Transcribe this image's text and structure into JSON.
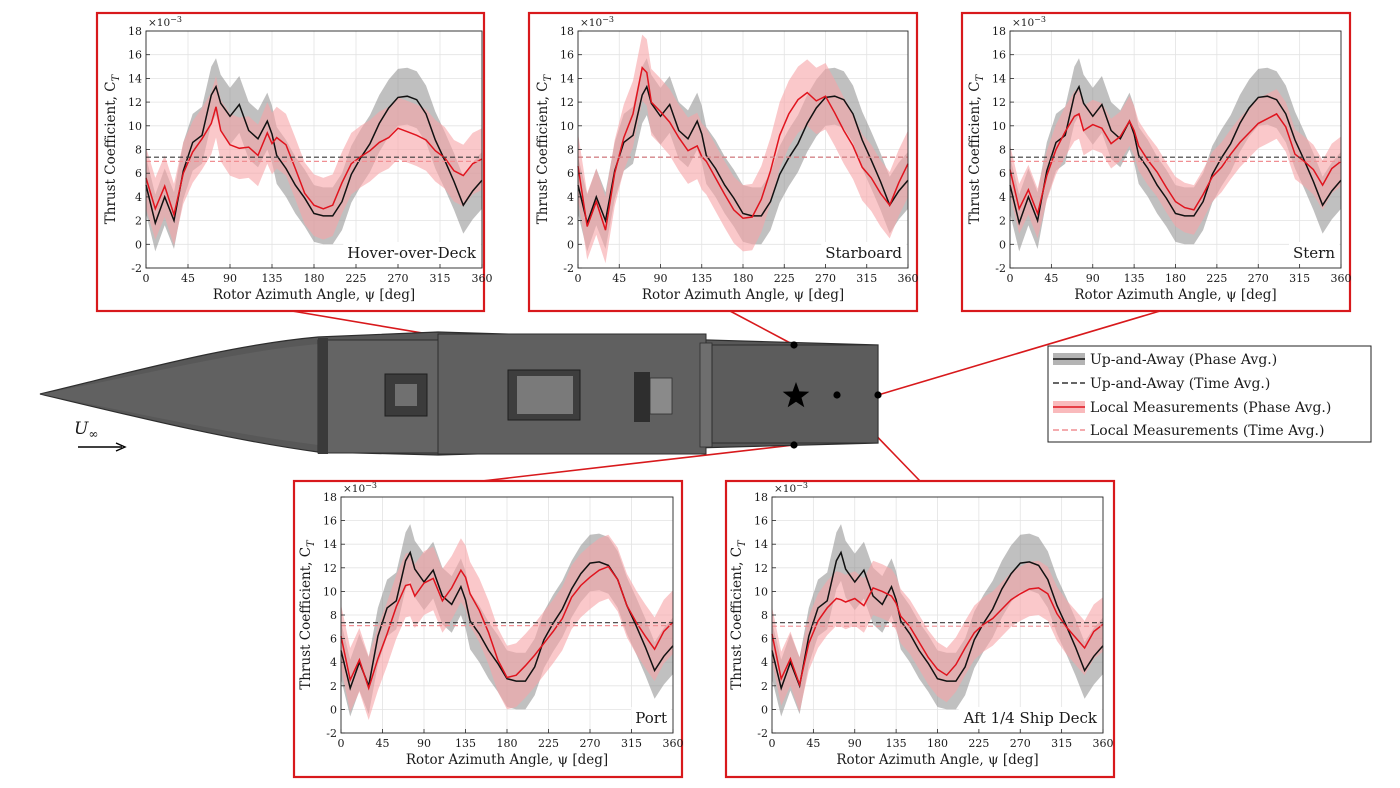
{
  "figure": {
    "xlabel": "Rotor Azimuth Angle, ψ [deg]",
    "ylabel": "Thrust Coefficient, C",
    "ylabel_sub": "T",
    "exponent": "×10",
    "exponent_power": "−3",
    "freestream_label": "U",
    "freestream_sub": "∞",
    "colors": {
      "uaa_line": "#111111",
      "uaa_band": "#8c8c8c",
      "local_line": "#e0141e",
      "local_band": "#f7a3a6",
      "highlight_box": "#d8191c",
      "ship": "#5a5a5a"
    }
  },
  "legend": {
    "items": [
      {
        "label": "Up-and-Away (Phase Avg.)",
        "kind": "uaa-band-line"
      },
      {
        "label": "Up-and-Away (Time Avg.)",
        "kind": "uaa-dash"
      },
      {
        "label": "Local Measurements (Phase Avg.)",
        "kind": "local-band-line"
      },
      {
        "label": "Local Measurements (Time Avg.)",
        "kind": "local-dash"
      }
    ]
  },
  "chart_data": [
    {
      "type": "line",
      "location": "Hover-over-Deck",
      "xlabel": "Rotor Azimuth Angle, ψ [deg]",
      "ylabel": "Thrust Coefficient, C_T",
      "xlim": [
        0,
        360
      ],
      "ylim": [
        -2,
        18
      ],
      "y_scale": "×10^-3",
      "grid": true,
      "xticks": [
        0,
        45,
        90,
        135,
        180,
        225,
        270,
        315,
        360
      ],
      "yticks": [
        -2,
        0,
        2,
        4,
        6,
        8,
        10,
        12,
        14,
        16,
        18
      ],
      "series": [
        {
          "name": "Up-and-Away (Phase Avg.)",
          "x": [
            0,
            10,
            20,
            30,
            40,
            50,
            60,
            70,
            75,
            80,
            90,
            100,
            110,
            120,
            130,
            135,
            140,
            150,
            160,
            170,
            180,
            190,
            200,
            210,
            220,
            230,
            240,
            250,
            260,
            270,
            280,
            290,
            300,
            310,
            320,
            330,
            340,
            350,
            360
          ],
          "y": [
            5.0,
            1.8,
            4.0,
            2.0,
            6.2,
            8.6,
            9.2,
            12.6,
            13.3,
            11.9,
            10.8,
            11.8,
            9.6,
            8.9,
            10.4,
            9.3,
            7.5,
            6.4,
            5.0,
            3.9,
            2.6,
            2.4,
            2.4,
            3.6,
            5.9,
            7.3,
            8.5,
            10.2,
            11.5,
            12.4,
            12.5,
            12.2,
            11.0,
            8.8,
            7.1,
            5.3,
            3.3,
            4.5,
            5.4
          ],
          "band_half_width": 2.4
        },
        {
          "name": "Local Measurements (Phase Avg.)",
          "x": [
            0,
            10,
            20,
            30,
            40,
            50,
            60,
            70,
            75,
            80,
            90,
            100,
            110,
            120,
            130,
            135,
            140,
            150,
            160,
            170,
            180,
            190,
            200,
            210,
            220,
            230,
            240,
            250,
            260,
            270,
            280,
            290,
            300,
            310,
            320,
            330,
            340,
            350,
            360
          ],
          "y": [
            5.6,
            3.0,
            4.9,
            2.5,
            6.0,
            7.8,
            8.9,
            10.2,
            11.6,
            9.6,
            8.4,
            8.1,
            8.2,
            7.5,
            9.4,
            8.5,
            9.0,
            8.4,
            6.4,
            4.3,
            3.3,
            3.0,
            3.3,
            5.2,
            6.8,
            7.4,
            7.9,
            8.6,
            9.0,
            9.8,
            9.5,
            9.2,
            8.8,
            7.9,
            7.3,
            6.2,
            5.8,
            6.8,
            7.2
          ],
          "band_half_width": 2.6
        },
        {
          "name": "Up-and-Away (Time Avg.)",
          "value": 7.35
        },
        {
          "name": "Local Measurements (Time Avg.)",
          "value": 7.0
        }
      ]
    },
    {
      "type": "line",
      "location": "Starboard",
      "xlabel": "Rotor Azimuth Angle, ψ [deg]",
      "ylabel": "Thrust Coefficient, C_T",
      "xlim": [
        0,
        360
      ],
      "ylim": [
        -2,
        18
      ],
      "y_scale": "×10^-3",
      "grid": true,
      "xticks": [
        0,
        45,
        90,
        135,
        180,
        225,
        270,
        315,
        360
      ],
      "yticks": [
        -2,
        0,
        2,
        4,
        6,
        8,
        10,
        12,
        14,
        16,
        18
      ],
      "series": [
        {
          "name": "Up-and-Away (Phase Avg.)",
          "x": [
            0,
            10,
            20,
            30,
            40,
            50,
            60,
            70,
            75,
            80,
            90,
            100,
            110,
            120,
            130,
            135,
            140,
            150,
            160,
            170,
            180,
            190,
            200,
            210,
            220,
            230,
            240,
            250,
            260,
            270,
            280,
            290,
            300,
            310,
            320,
            330,
            340,
            350,
            360
          ],
          "y": [
            5.0,
            1.8,
            4.0,
            2.0,
            6.2,
            8.6,
            9.2,
            12.6,
            13.3,
            11.9,
            10.8,
            11.8,
            9.6,
            8.9,
            10.4,
            9.3,
            7.5,
            6.4,
            5.0,
            3.9,
            2.6,
            2.4,
            2.4,
            3.6,
            5.9,
            7.3,
            8.5,
            10.2,
            11.5,
            12.4,
            12.5,
            12.2,
            11.0,
            8.8,
            7.1,
            5.3,
            3.3,
            4.5,
            5.4
          ],
          "band_half_width": 2.4
        },
        {
          "name": "Local Measurements (Phase Avg.)",
          "x": [
            0,
            10,
            20,
            30,
            40,
            50,
            60,
            70,
            75,
            80,
            90,
            100,
            110,
            120,
            130,
            135,
            140,
            150,
            160,
            170,
            180,
            190,
            200,
            210,
            220,
            230,
            240,
            250,
            260,
            270,
            280,
            290,
            300,
            310,
            320,
            330,
            340,
            350,
            360
          ],
          "y": [
            6.6,
            1.5,
            3.6,
            1.2,
            6.0,
            9.0,
            11.0,
            14.9,
            14.5,
            12.0,
            11.2,
            10.3,
            9.0,
            7.9,
            8.3,
            7.4,
            7.0,
            5.6,
            4.2,
            2.9,
            2.2,
            2.3,
            3.8,
            6.2,
            9.2,
            11.0,
            12.2,
            12.8,
            12.1,
            12.5,
            11.1,
            9.6,
            8.3,
            6.5,
            5.6,
            4.3,
            3.3,
            5.2,
            6.8
          ],
          "band_half_width": 2.8
        },
        {
          "name": "Up-and-Away (Time Avg.)",
          "value": 7.35
        },
        {
          "name": "Local Measurements (Time Avg.)",
          "value": 7.35
        }
      ]
    },
    {
      "type": "line",
      "location": "Stern",
      "xlabel": "Rotor Azimuth Angle, ψ [deg]",
      "ylabel": "Thrust Coefficient, C_T",
      "xlim": [
        0,
        360
      ],
      "ylim": [
        -2,
        18
      ],
      "y_scale": "×10^-3",
      "grid": true,
      "xticks": [
        0,
        45,
        90,
        135,
        180,
        225,
        270,
        315,
        360
      ],
      "yticks": [
        -2,
        0,
        2,
        4,
        6,
        8,
        10,
        12,
        14,
        16,
        18
      ],
      "series": [
        {
          "name": "Up-and-Away (Phase Avg.)",
          "x": [
            0,
            10,
            20,
            30,
            40,
            50,
            60,
            70,
            75,
            80,
            90,
            100,
            110,
            120,
            130,
            135,
            140,
            150,
            160,
            170,
            180,
            190,
            200,
            210,
            220,
            230,
            240,
            250,
            260,
            270,
            280,
            290,
            300,
            310,
            320,
            330,
            340,
            350,
            360
          ],
          "y": [
            5.0,
            1.8,
            4.0,
            2.0,
            6.2,
            8.6,
            9.2,
            12.6,
            13.3,
            11.9,
            10.8,
            11.8,
            9.6,
            8.9,
            10.4,
            9.3,
            7.5,
            6.4,
            5.0,
            3.9,
            2.6,
            2.4,
            2.4,
            3.6,
            5.9,
            7.3,
            8.5,
            10.2,
            11.5,
            12.4,
            12.5,
            12.2,
            11.0,
            8.8,
            7.1,
            5.3,
            3.3,
            4.5,
            5.4
          ],
          "band_half_width": 2.4
        },
        {
          "name": "Local Measurements (Phase Avg.)",
          "x": [
            0,
            10,
            20,
            30,
            40,
            50,
            60,
            70,
            75,
            80,
            90,
            100,
            110,
            120,
            130,
            135,
            140,
            150,
            160,
            170,
            180,
            190,
            200,
            210,
            220,
            230,
            240,
            250,
            260,
            270,
            280,
            290,
            300,
            310,
            320,
            330,
            340,
            350,
            360
          ],
          "y": [
            6.3,
            3.0,
            4.6,
            2.6,
            5.8,
            8.0,
            9.5,
            10.8,
            11.0,
            9.6,
            10.1,
            9.8,
            8.5,
            9.1,
            10.4,
            9.6,
            8.3,
            7.1,
            6.1,
            4.8,
            3.6,
            3.1,
            2.9,
            4.2,
            5.7,
            6.5,
            7.6,
            8.6,
            9.4,
            10.2,
            10.6,
            11.0,
            9.9,
            7.6,
            7.0,
            6.3,
            5.0,
            6.4,
            7.0
          ],
          "band_half_width": 2.1
        },
        {
          "name": "Up-and-Away (Time Avg.)",
          "value": 7.35
        },
        {
          "name": "Local Measurements (Time Avg.)",
          "value": 7.0
        }
      ]
    },
    {
      "type": "line",
      "location": "Port",
      "xlabel": "Rotor Azimuth Angle, ψ [deg]",
      "ylabel": "Thrust Coefficient, C_T",
      "xlim": [
        0,
        360
      ],
      "ylim": [
        -2,
        18
      ],
      "y_scale": "×10^-3",
      "grid": true,
      "xticks": [
        0,
        45,
        90,
        135,
        180,
        225,
        270,
        315,
        360
      ],
      "yticks": [
        -2,
        0,
        2,
        4,
        6,
        8,
        10,
        12,
        14,
        16,
        18
      ],
      "series": [
        {
          "name": "Up-and-Away (Phase Avg.)",
          "x": [
            0,
            10,
            20,
            30,
            40,
            50,
            60,
            70,
            75,
            80,
            90,
            100,
            110,
            120,
            130,
            135,
            140,
            150,
            160,
            170,
            180,
            190,
            200,
            210,
            220,
            230,
            240,
            250,
            260,
            270,
            280,
            290,
            300,
            310,
            320,
            330,
            340,
            350,
            360
          ],
          "y": [
            5.0,
            1.8,
            4.0,
            2.0,
            6.2,
            8.6,
            9.2,
            12.6,
            13.3,
            11.9,
            10.8,
            11.8,
            9.6,
            8.9,
            10.4,
            9.3,
            7.5,
            6.4,
            5.0,
            3.9,
            2.6,
            2.4,
            2.4,
            3.6,
            5.9,
            7.3,
            8.5,
            10.2,
            11.5,
            12.4,
            12.5,
            12.2,
            11.0,
            8.8,
            7.1,
            5.3,
            3.3,
            4.5,
            5.4
          ],
          "band_half_width": 2.4
        },
        {
          "name": "Local Measurements (Phase Avg.)",
          "x": [
            0,
            10,
            20,
            30,
            40,
            50,
            60,
            70,
            75,
            80,
            90,
            100,
            110,
            120,
            130,
            135,
            140,
            150,
            160,
            170,
            180,
            190,
            200,
            210,
            220,
            230,
            240,
            250,
            260,
            270,
            280,
            290,
            300,
            310,
            320,
            330,
            340,
            350,
            360
          ],
          "y": [
            6.2,
            2.5,
            4.2,
            1.8,
            4.3,
            6.4,
            8.7,
            10.5,
            10.6,
            9.6,
            10.7,
            11.1,
            9.2,
            10.3,
            11.8,
            11.2,
            9.8,
            8.4,
            6.5,
            4.2,
            2.7,
            2.9,
            3.7,
            4.6,
            5.6,
            6.6,
            7.7,
            9.5,
            10.5,
            11.2,
            11.8,
            12.1,
            11.0,
            8.8,
            7.4,
            6.2,
            5.1,
            6.6,
            7.4
          ],
          "band_half_width": 2.7
        },
        {
          "name": "Up-and-Away (Time Avg.)",
          "value": 7.35
        },
        {
          "name": "Local Measurements (Time Avg.)",
          "value": 7.1
        }
      ]
    },
    {
      "type": "line",
      "location": "Aft 1/4 Ship Deck",
      "xlabel": "Rotor Azimuth Angle, ψ [deg]",
      "ylabel": "Thrust Coefficient, C_T",
      "xlim": [
        0,
        360
      ],
      "ylim": [
        -2,
        18
      ],
      "y_scale": "×10^-3",
      "grid": true,
      "xticks": [
        0,
        45,
        90,
        135,
        180,
        225,
        270,
        315,
        360
      ],
      "yticks": [
        -2,
        0,
        2,
        4,
        6,
        8,
        10,
        12,
        14,
        16,
        18
      ],
      "series": [
        {
          "name": "Up-and-Away (Phase Avg.)",
          "x": [
            0,
            10,
            20,
            30,
            40,
            50,
            60,
            70,
            75,
            80,
            90,
            100,
            110,
            120,
            130,
            135,
            140,
            150,
            160,
            170,
            180,
            190,
            200,
            210,
            220,
            230,
            240,
            250,
            260,
            270,
            280,
            290,
            300,
            310,
            320,
            330,
            340,
            350,
            360
          ],
          "y": [
            5.0,
            1.8,
            4.0,
            2.0,
            6.2,
            8.6,
            9.2,
            12.6,
            13.3,
            11.9,
            10.8,
            11.8,
            9.6,
            8.9,
            10.4,
            9.3,
            7.5,
            6.4,
            5.0,
            3.9,
            2.6,
            2.4,
            2.4,
            3.6,
            5.9,
            7.3,
            8.5,
            10.2,
            11.5,
            12.4,
            12.5,
            12.2,
            11.0,
            8.8,
            7.1,
            5.3,
            3.3,
            4.5,
            5.4
          ],
          "band_half_width": 2.4
        },
        {
          "name": "Local Measurements (Phase Avg.)",
          "x": [
            0,
            10,
            20,
            30,
            40,
            50,
            60,
            70,
            75,
            80,
            90,
            100,
            110,
            120,
            130,
            135,
            140,
            150,
            160,
            170,
            180,
            190,
            200,
            210,
            220,
            230,
            240,
            250,
            260,
            270,
            280,
            290,
            300,
            310,
            320,
            330,
            340,
            350,
            360
          ],
          "y": [
            6.4,
            2.6,
            4.3,
            2.1,
            5.6,
            7.5,
            8.6,
            9.4,
            9.3,
            9.1,
            9.4,
            8.8,
            10.3,
            10.0,
            9.6,
            9.0,
            7.9,
            7.0,
            5.7,
            4.4,
            3.4,
            2.9,
            3.8,
            5.2,
            6.5,
            7.2,
            7.7,
            8.5,
            9.3,
            9.8,
            10.2,
            10.3,
            9.8,
            8.1,
            7.0,
            6.1,
            5.2,
            6.6,
            7.2
          ],
          "band_half_width": 2.3
        },
        {
          "name": "Up-and-Away (Time Avg.)",
          "value": 7.35
        },
        {
          "name": "Local Measurements (Time Avg.)",
          "value": 7.05
        }
      ]
    }
  ]
}
